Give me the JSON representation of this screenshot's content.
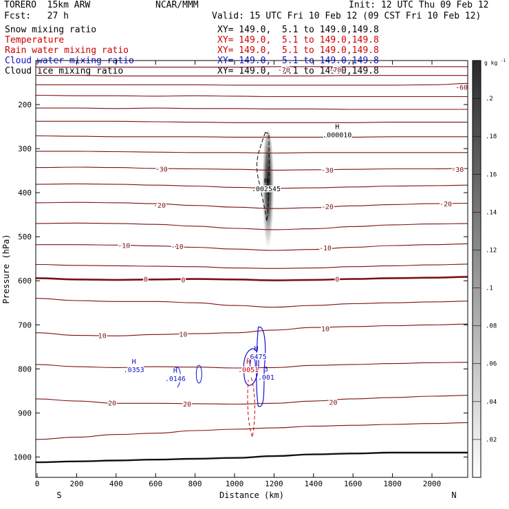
{
  "header": {
    "model": "TORERO  15km ARW",
    "org": "NCAR/MMM",
    "init": "Init: 12 UTC Thu 09 Feb 12",
    "fcst": "Fcst:   27 h",
    "valid": "Valid: 15 UTC Fri 10 Feb 12 (09 CST Fri 10 Feb 12)"
  },
  "fields": [
    {
      "label": "Snow mixing ratio",
      "xy": "XY= 149.0,  5.1 to 149.0,149.8",
      "color": "#000000"
    },
    {
      "label": "Temperature",
      "xy": "XY= 149.0,  5.1 to 149.0,149.8",
      "color": "#cc0000"
    },
    {
      "label": "Rain water mixing ratio",
      "xy": "XY= 149.0,  5.1 to 149.0,149.8",
      "color": "#cc0000"
    },
    {
      "label": "Cloud water mixing ratio",
      "xy": "XY= 149.0,  5.1 to 149.0,149.8",
      "color": "#1010cc"
    },
    {
      "label": "Cloud ice mixing ratio",
      "xy": "XY= 149.0,  5.1 to 149.0,149.8",
      "color": "#000000"
    }
  ],
  "colorbar": {
    "unit": "g kg",
    "unit_exp": "-1",
    "ticks": [
      0.02,
      0.04,
      0.06,
      0.08,
      0.1,
      0.12,
      0.14,
      0.16,
      0.18,
      0.2
    ],
    "tick_labels": [
      ".02",
      ".04",
      ".06",
      ".08",
      ".1",
      ".12",
      ".14",
      ".16",
      ".18",
      ".2"
    ],
    "range": [
      0,
      0.22
    ]
  },
  "chart_data": {
    "type": "contour cross-section",
    "xlabel": "Distance (km)",
    "ylabel": "Pressure (hPa)",
    "xlim": [
      0,
      2200
    ],
    "ylim": [
      1050,
      100
    ],
    "x_ticks": [
      0,
      200,
      400,
      600,
      800,
      1000,
      1200,
      1400,
      1600,
      1800,
      2000
    ],
    "y_ticks": [
      200,
      300,
      400,
      500,
      600,
      700,
      800,
      900,
      1000
    ],
    "left_end_label": "S",
    "right_end_label": "N",
    "temperature_contours": [
      {
        "value": -70,
        "p": [
          115,
          115,
          115,
          115,
          115,
          115,
          114,
          114,
          114,
          114,
          114,
          114
        ]
      },
      {
        "value": -65,
        "p": [
          134,
          134,
          135,
          135,
          135,
          135,
          135,
          135,
          134,
          134,
          134,
          134
        ]
      },
      {
        "value": -60,
        "p": [
          155,
          155,
          155,
          155,
          155,
          156,
          156,
          156,
          156,
          156,
          155,
          152
        ]
      },
      {
        "value": -55,
        "p": [
          179,
          180,
          180,
          181,
          180,
          181,
          182,
          182,
          182,
          182,
          182,
          182
        ]
      },
      {
        "value": -50,
        "p": [
          208,
          208,
          209,
          208,
          209,
          209,
          210,
          210,
          211,
          211,
          211,
          211
        ]
      },
      {
        "value": -45,
        "p": [
          238,
          238,
          238,
          239,
          240,
          241,
          241,
          241,
          241,
          240,
          240,
          240
        ]
      },
      {
        "value": -40,
        "p": [
          271,
          272,
          273,
          273,
          273,
          274,
          274,
          274,
          274,
          273,
          273,
          273
        ]
      },
      {
        "value": -35,
        "p": [
          306,
          306,
          307,
          308,
          309,
          309,
          310,
          309,
          309,
          309,
          309,
          309
        ]
      },
      {
        "value": -30,
        "p": [
          343,
          342,
          343,
          345,
          346,
          347,
          349,
          348,
          347,
          346,
          346,
          345
        ]
      },
      {
        "value": -25,
        "p": [
          381,
          380,
          381,
          383,
          385,
          388,
          390,
          389,
          387,
          385,
          384,
          383
        ]
      },
      {
        "value": -20,
        "p": [
          423,
          422,
          423,
          425,
          429,
          433,
          436,
          434,
          430,
          427,
          425,
          424
        ]
      },
      {
        "value": -15,
        "p": [
          470,
          469,
          470,
          472,
          476,
          481,
          484,
          482,
          477,
          473,
          471,
          470
        ]
      },
      {
        "value": -10,
        "p": [
          518,
          518,
          519,
          521,
          524,
          528,
          531,
          529,
          524,
          520,
          518,
          516
        ]
      },
      {
        "value": -5,
        "p": [
          563,
          565,
          566,
          567,
          568,
          571,
          572,
          571,
          568,
          566,
          564,
          562
        ]
      },
      {
        "value": 0,
        "p": [
          594,
          597,
          598,
          597,
          596,
          597,
          599,
          598,
          596,
          594,
          593,
          591
        ]
      },
      {
        "value": 5,
        "p": [
          640,
          645,
          647,
          647,
          650,
          656,
          660,
          656,
          652,
          650,
          648,
          646
        ]
      },
      {
        "value": 10,
        "p": [
          718,
          724,
          725,
          722,
          720,
          718,
          712,
          706,
          704,
          702,
          700,
          698
        ]
      },
      {
        "value": 15,
        "p": [
          790,
          795,
          797,
          795,
          796,
          798,
          797,
          792,
          790,
          788,
          786,
          785
        ]
      },
      {
        "value": 20,
        "p": [
          868,
          873,
          878,
          878,
          879,
          880,
          878,
          873,
          868,
          865,
          862,
          860
        ]
      },
      {
        "value": 25,
        "p": [
          960,
          955,
          949,
          946,
          940,
          937,
          934,
          930,
          928,
          926,
          924,
          922
        ]
      },
      {
        "value": 30,
        "p": [
          1012,
          1010,
          1008,
          1006,
          1004,
          1002,
          998,
          994,
          992,
          990,
          990,
          990
        ]
      }
    ],
    "contour_x": [
      0,
      200,
      400,
      600,
      800,
      1000,
      1200,
      1400,
      1600,
      1800,
      2000,
      2200
    ],
    "temperature_labels": [
      {
        "value": -70,
        "x": 1250,
        "p": 120
      },
      {
        "value": -70,
        "x": 1510,
        "p": 120
      },
      {
        "value": -60,
        "x": 2150,
        "p": 160
      },
      {
        "value": -30,
        "x": 630,
        "p": 346
      },
      {
        "value": -30,
        "x": 1470,
        "p": 348
      },
      {
        "value": -30,
        "x": 2130,
        "p": 347
      },
      {
        "value": -20,
        "x": 620,
        "p": 428
      },
      {
        "value": -20,
        "x": 1470,
        "p": 431
      },
      {
        "value": -20,
        "x": 2070,
        "p": 425
      },
      {
        "value": -10,
        "x": 440,
        "p": 519
      },
      {
        "value": -10,
        "x": 710,
        "p": 522
      },
      {
        "value": -10,
        "x": 1460,
        "p": 525
      },
      {
        "value": 0,
        "x": 550,
        "p": 596
      },
      {
        "value": 0,
        "x": 740,
        "p": 597
      },
      {
        "value": 0,
        "x": 1520,
        "p": 596
      },
      {
        "value": 10,
        "x": 330,
        "p": 724
      },
      {
        "value": 10,
        "x": 740,
        "p": 721
      },
      {
        "value": 10,
        "x": 1460,
        "p": 708
      },
      {
        "value": 20,
        "x": 380,
        "p": 877
      },
      {
        "value": 20,
        "x": 760,
        "p": 879
      },
      {
        "value": 20,
        "x": 1500,
        "p": 875
      }
    ],
    "extrema_labels": [
      {
        "letter": "H",
        "value": ".000010",
        "x": 1520,
        "p": 265,
        "color": "#000000"
      },
      {
        "letter": "H",
        "value": ".002545",
        "x": 1160,
        "p": 387,
        "color": "#000000"
      },
      {
        "letter": "H",
        "value": ".0353",
        "x": 490,
        "p": 798,
        "color": "#1010cc"
      },
      {
        "letter": "H",
        "value": ".0146",
        "x": 700,
        "p": 818,
        "color": "#1010cc"
      },
      {
        "letter": "H",
        "value": ".6475",
        "x": 1110,
        "p": 768,
        "color": "#1010cc"
      },
      {
        "letter": "H",
        "value": ".0051",
        "x": 1070,
        "p": 798,
        "color": "#cc0000"
      },
      {
        "letter": "3",
        "value": ".001",
        "x": 1160,
        "p": 815,
        "color": "#1010cc"
      }
    ],
    "snow_max_region": {
      "x_center": 1170,
      "p_top": 260,
      "p_bottom": 575,
      "max": 0.22
    }
  }
}
